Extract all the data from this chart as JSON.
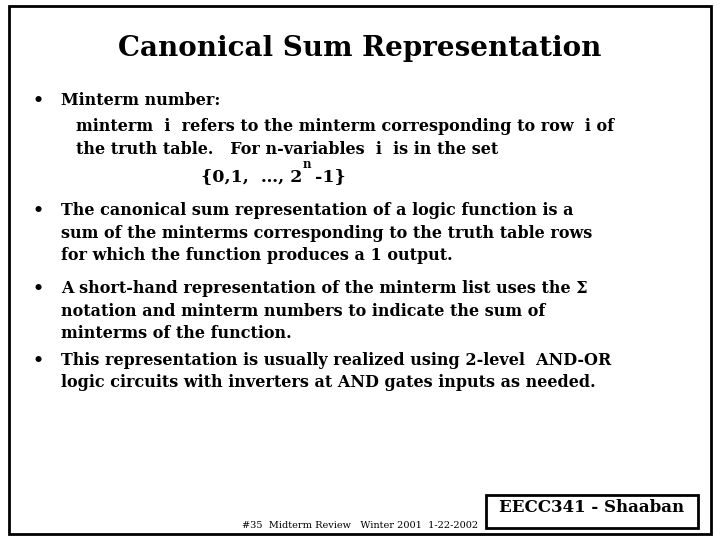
{
  "title": "Canonical Sum Representation",
  "background_color": "#ffffff",
  "border_color": "#000000",
  "text_color": "#000000",
  "title_fontsize": 20,
  "body_fontsize": 11.5,
  "small_fontsize": 7,
  "footer_fontsize": 12,
  "bullet1_head": "Minterm number:",
  "bullet1_body1": "minterm  i  refers to the minterm corresponding to row  i of",
  "bullet1_body2": "the truth table.   For n-variables  i  is in the set",
  "bullet2_line1": "The canonical sum representation of a logic function is a",
  "bullet2_line2": "sum of the minterms corresponding to the truth table rows",
  "bullet2_line3": "for which the function produces a 1 output.",
  "bullet3_line1": "A short-hand representation of the minterm list uses the Σ",
  "bullet3_line2": "notation and minterm numbers to indicate the sum of",
  "bullet3_line3": "minterms of the function.",
  "bullet4_line1": "This representation is usually realized using 2-level  AND-OR",
  "bullet4_line2": "logic circuits with inverters at AND gates inputs as needed.",
  "footer_box": "EECC341 - Shaaban",
  "footer_small": "#35  Midterm Review   Winter 2001  1-22-2002"
}
